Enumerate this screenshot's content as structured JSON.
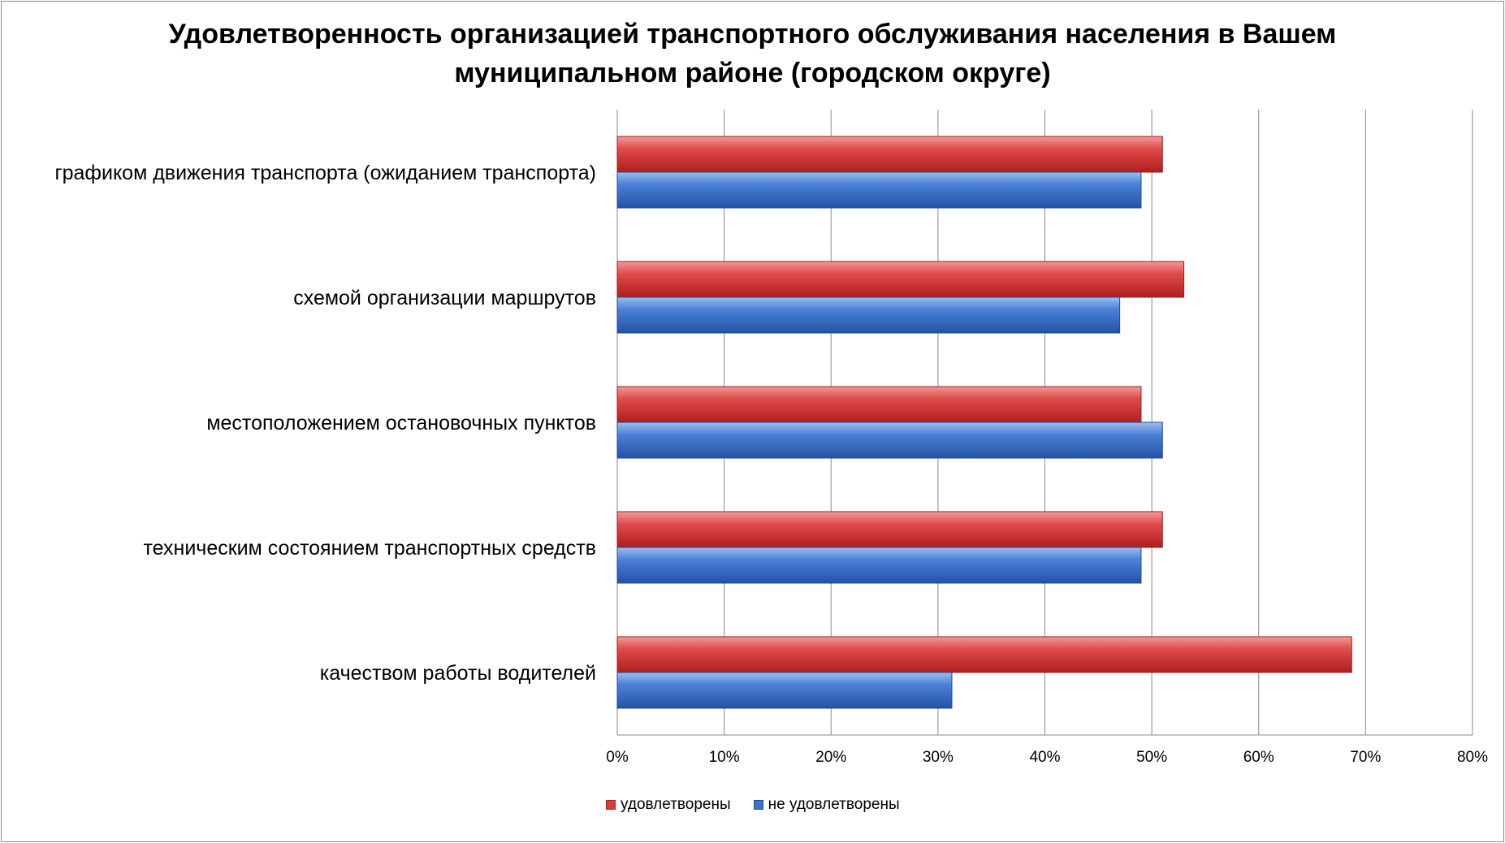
{
  "chart_data": {
    "type": "bar",
    "orientation": "horizontal",
    "title": "Удовлетворенность организацией транспортного обслуживания населения в Вашем муниципальном районе (городском округе)",
    "title_lines": [
      "Удовлетворенность организацией транспортного обслуживания населения в Вашем",
      "муниципальном районе (городском округе)"
    ],
    "categories": [
      "графиком движения транспорта (ожиданием транспорта)",
      "схемой организации маршрутов",
      "местоположением остановочных пунктов",
      "техническим состоянием транспортных средств",
      "качеством работы водителей"
    ],
    "series": [
      {
        "name": "удовлетворены",
        "color": "#d93a3a",
        "values": [
          51,
          53,
          49,
          51,
          68.7
        ]
      },
      {
        "name": "не удовлетворены",
        "color": "#3f72c8",
        "values": [
          49,
          47,
          51,
          49,
          31.3
        ]
      }
    ],
    "xlim": [
      0,
      80
    ],
    "xticks": [
      "0%",
      "10%",
      "20%",
      "30%",
      "40%",
      "50%",
      "60%",
      "70%",
      "80%"
    ],
    "grid": "vertical",
    "legend": "bottom"
  }
}
